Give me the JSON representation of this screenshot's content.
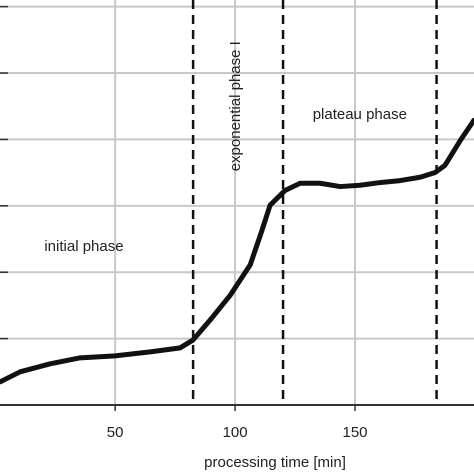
{
  "chart_data": {
    "type": "line",
    "xlabel": "processing time [min]",
    "x": [
      2.1,
      10.4,
      22.9,
      35.4,
      50,
      64.6,
      77.1,
      82.5,
      89.6,
      97.9,
      106.3,
      111.2,
      114.6,
      120.8,
      127.1,
      135.4,
      143.8,
      152.1,
      160.4,
      168.8,
      177.1,
      183.3,
      187.5,
      193.8,
      199.6
    ],
    "series": [
      {
        "color": "#111111",
        "values": [
          0.35,
          0.5,
          0.62,
          0.71,
          0.74,
          0.8,
          0.86,
          0.98,
          1.28,
          1.65,
          2.11,
          2.63,
          3.01,
          3.23,
          3.34,
          3.34,
          3.29,
          3.31,
          3.35,
          3.38,
          3.43,
          3.5,
          3.61,
          3.98,
          4.29
        ]
      }
    ],
    "xlim": [
      2,
      199.6
    ],
    "ylim": [
      0,
      6.1
    ],
    "xticks": [
      50,
      100,
      150
    ],
    "ygrid": [
      1,
      2,
      3,
      4,
      5,
      6
    ],
    "grid": true,
    "phase_boundaries": [
      82.5,
      120,
      184
    ],
    "annotations": [
      {
        "text": "initial phase",
        "x": 37,
        "y": 2.38
      },
      {
        "text": "exponential phase I",
        "x": 100.5,
        "y": 4.5,
        "rotate": -90
      },
      {
        "text": "plateau phase",
        "x": 152,
        "y": 4.37
      }
    ]
  }
}
